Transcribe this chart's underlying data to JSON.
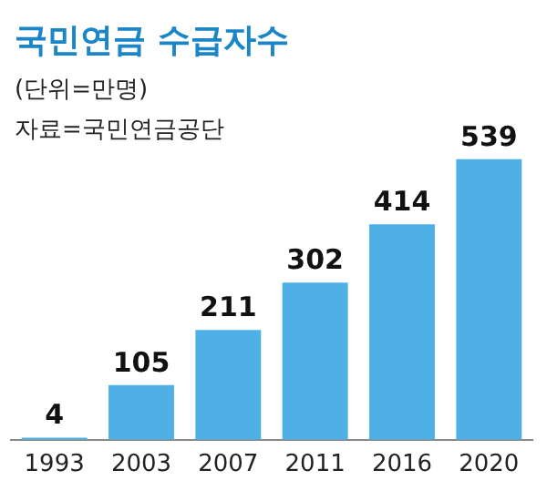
{
  "chart_data": {
    "type": "bar",
    "title": "국민연금 수급자수",
    "subtitle": "(단위=만명)",
    "annotations": [
      "자료=국민연금공단"
    ],
    "categories": [
      "1993",
      "2003",
      "2007",
      "2011",
      "2016",
      "2020"
    ],
    "values": [
      4,
      105,
      211,
      302,
      414,
      539
    ],
    "color": "#4fb0e6",
    "data_labels": true,
    "grid": false,
    "legend": false
  }
}
